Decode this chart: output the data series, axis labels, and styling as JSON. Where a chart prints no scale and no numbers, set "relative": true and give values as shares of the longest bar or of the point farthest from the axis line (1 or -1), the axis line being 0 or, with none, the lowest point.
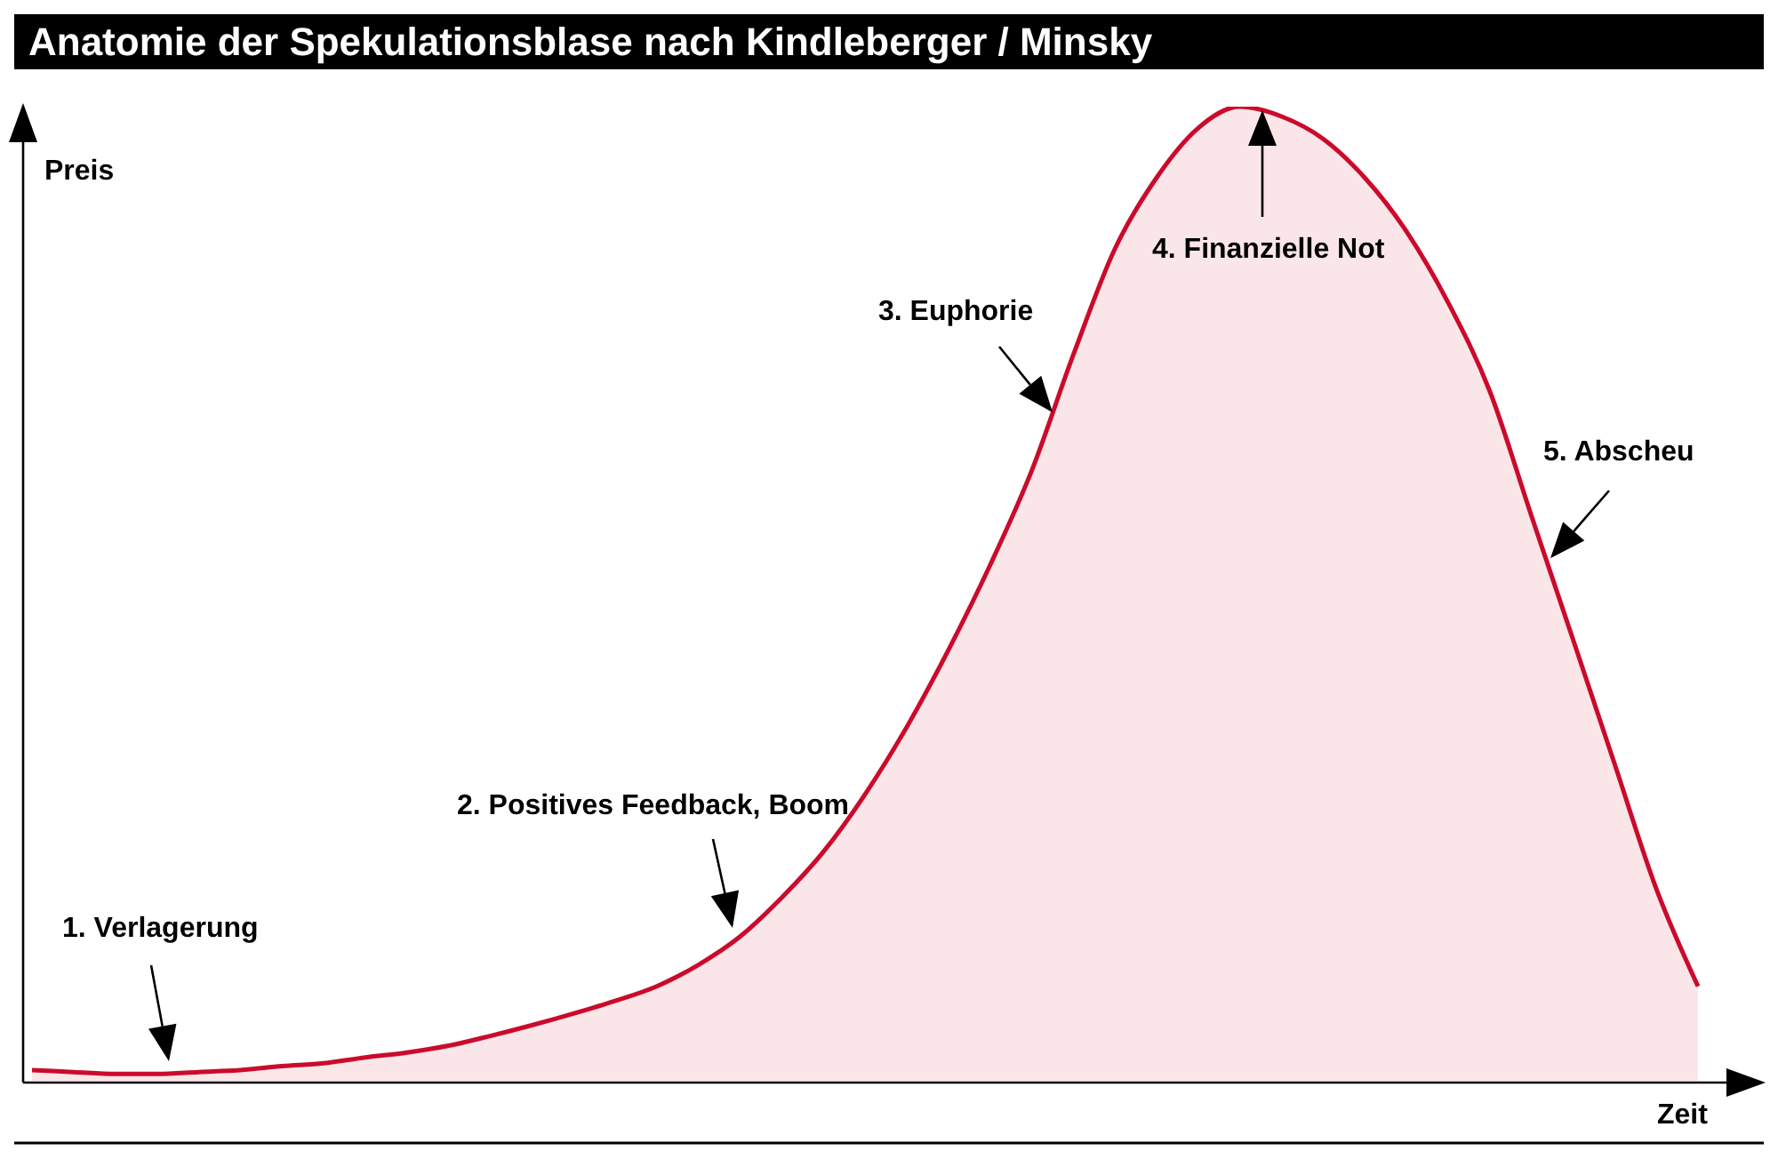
{
  "chart_data": {
    "type": "area",
    "title": "Anatomie der Spekulationsblase nach Kindleberger / Minsky",
    "xlabel": "Zeit",
    "ylabel": "Preis",
    "relative": true,
    "categories": [
      null,
      null,
      null,
      null,
      null,
      null,
      null,
      null,
      null,
      null,
      null,
      null,
      null,
      null,
      null,
      null,
      null,
      null,
      null,
      null,
      null,
      null,
      null,
      null,
      null,
      null,
      null,
      null,
      null,
      null,
      null,
      null,
      null,
      null,
      null,
      null,
      null,
      null,
      null,
      null,
      null
    ],
    "series": [
      {
        "color": "#cc0a2b",
        "values": [
          0.011,
          0.009,
          0.007,
          0.007,
          0.009,
          0.011,
          0.015,
          0.018,
          0.024,
          0.029,
          0.036,
          0.046,
          0.057,
          0.069,
          0.082,
          0.097,
          0.119,
          0.148,
          0.188,
          0.235,
          0.294,
          0.363,
          0.442,
          0.529,
          0.626,
          0.745,
          0.854,
          0.927,
          0.978,
          1,
          0.99,
          0.967,
          0.927,
          0.872,
          0.799,
          0.708,
          0.58,
          0.453,
          0.325,
          0.197,
          0.097
        ]
      }
    ],
    "annotations": [
      "1. Verlagerung",
      "2. Positives Feedback, Boom",
      "3. Euphorie",
      "4. Finanzielle Not",
      "5. Abscheu"
    ]
  }
}
